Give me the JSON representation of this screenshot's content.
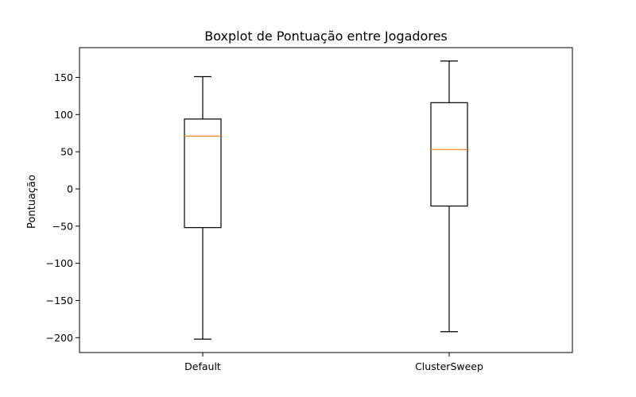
{
  "chart_data": {
    "type": "boxplot",
    "title": "Boxplot de Pontuação entre Jogadores",
    "xlabel": "",
    "ylabel": "Pontuação",
    "ylim": [
      -220,
      190
    ],
    "yticks": [
      150,
      100,
      50,
      0,
      -50,
      -100,
      -150,
      -200
    ],
    "ytick_labels": [
      "150",
      "100",
      "50",
      "0",
      "−50",
      "−100",
      "−150",
      "−200"
    ],
    "categories": [
      "Default",
      "ClusterSweep"
    ],
    "boxes": [
      {
        "name": "Default",
        "whisker_low": -202,
        "q1": -52,
        "median": 71,
        "q3": 94,
        "whisker_high": 151
      },
      {
        "name": "ClusterSweep",
        "whisker_low": -192,
        "q1": -23,
        "median": 53,
        "q3": 116,
        "whisker_high": 172
      }
    ],
    "grid": false,
    "colors": {
      "box": "#000000",
      "median": "#ff7f0e",
      "axes": "#000000"
    }
  }
}
